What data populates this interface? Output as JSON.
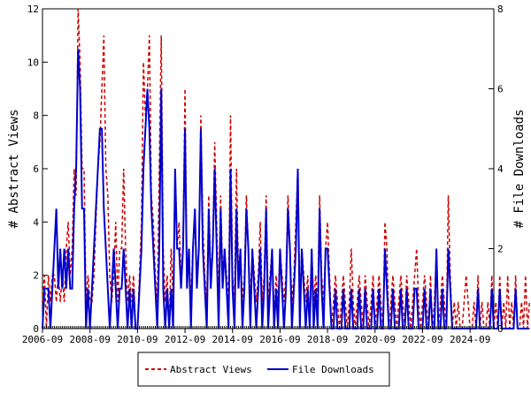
{
  "chart_data": {
    "type": "line",
    "title": "",
    "xlabel": "",
    "ylabel": "# Abstract Views",
    "y2label": "# File Downloads",
    "x_range": [
      "2006-09",
      "2025-09"
    ],
    "x_tick_labels": [
      "2006-09",
      "2008-09",
      "2010-09",
      "2012-09",
      "2014-09",
      "2016-09",
      "2018-09",
      "2020-09",
      "2022-09",
      "2024-09"
    ],
    "ylim": [
      0,
      12
    ],
    "y_ticks": [
      0,
      2,
      4,
      6,
      8,
      10,
      12
    ],
    "y2lim": [
      0,
      8
    ],
    "y2_ticks": [
      0,
      2,
      4,
      6,
      8
    ],
    "grid": false,
    "legend_position": "bottom",
    "series": [
      {
        "name": "Abstract Views",
        "axis": "left",
        "color": "#cc0000",
        "style": "dashed",
        "values": [
          1,
          2,
          0,
          2,
          1,
          2,
          2,
          1,
          2,
          1,
          2,
          1,
          3,
          4,
          2,
          3,
          6,
          5,
          12,
          10,
          6,
          6,
          1,
          2,
          1,
          1,
          2,
          4,
          6,
          7,
          9,
          11,
          6,
          5,
          2,
          1,
          2,
          4,
          1,
          3,
          3,
          6,
          3,
          1,
          2,
          1,
          2,
          0,
          0,
          2,
          4,
          10,
          8,
          9,
          11,
          5,
          4,
          2,
          1,
          6,
          11,
          3,
          1,
          2,
          0,
          3,
          1,
          6,
          3,
          4,
          2,
          3,
          9,
          2,
          3,
          1,
          3,
          4,
          2,
          3,
          8,
          4,
          2,
          1,
          5,
          2,
          3,
          7,
          4,
          1,
          5,
          2,
          3,
          2,
          1,
          8,
          2,
          1,
          6,
          2,
          3,
          1,
          2,
          5,
          3,
          1,
          3,
          2,
          1,
          2,
          4,
          1,
          2,
          5,
          1,
          2,
          3,
          0,
          2,
          1,
          3,
          2,
          1,
          2,
          5,
          3,
          1,
          2,
          4,
          6,
          1,
          3,
          2,
          1,
          2,
          0,
          3,
          1,
          2,
          1,
          5,
          2,
          1,
          3,
          4,
          2,
          0,
          1,
          2,
          1,
          0,
          1,
          2,
          1,
          0,
          1,
          3,
          1,
          0,
          1,
          2,
          1,
          0,
          2,
          1,
          0,
          1,
          2,
          0,
          1,
          2,
          1,
          0,
          4,
          3,
          0,
          1,
          2,
          1,
          0,
          1,
          2,
          1,
          0,
          2,
          1,
          0,
          1,
          2,
          3,
          1,
          0,
          1,
          2,
          1,
          0,
          2,
          0,
          1,
          3,
          0,
          1,
          2,
          1,
          0,
          5,
          2,
          0,
          1,
          0,
          1,
          0,
          0,
          1,
          2,
          1,
          0,
          0,
          1,
          0,
          2,
          0,
          1,
          0,
          0,
          1,
          0,
          2,
          0,
          1,
          0,
          2,
          0,
          1,
          0,
          2,
          0,
          1,
          0,
          2,
          0,
          0,
          1,
          0,
          2,
          0,
          1
        ]
      },
      {
        "name": "File Downloads",
        "axis": "right",
        "color": "#0000cc",
        "style": "solid",
        "values": [
          0,
          1,
          1,
          1,
          0,
          1,
          2,
          3,
          1,
          2,
          1,
          2,
          1,
          2,
          1,
          1,
          3,
          4,
          7,
          6,
          3,
          3,
          0,
          1,
          0,
          1,
          2,
          3,
          4,
          5,
          5,
          3,
          2,
          1,
          0,
          1,
          2,
          1,
          0,
          1,
          1,
          2,
          1,
          0,
          1,
          0,
          1,
          0,
          0,
          1,
          2,
          4,
          5,
          6,
          5,
          3,
          2,
          1,
          0,
          2,
          6,
          1,
          0,
          1,
          0,
          1,
          0,
          4,
          2,
          2,
          1,
          2,
          5,
          1,
          2,
          0,
          2,
          3,
          1,
          2,
          5,
          2,
          1,
          0,
          3,
          1,
          2,
          4,
          2,
          0,
          3,
          1,
          2,
          1,
          0,
          4,
          1,
          0,
          3,
          1,
          2,
          0,
          1,
          3,
          2,
          0,
          2,
          1,
          0,
          1,
          2,
          0,
          1,
          3,
          0,
          1,
          2,
          0,
          1,
          0,
          2,
          1,
          0,
          1,
          3,
          2,
          0,
          1,
          2,
          4,
          0,
          2,
          1,
          0,
          1,
          0,
          2,
          0,
          1,
          0,
          3,
          1,
          0,
          2,
          2,
          1,
          0,
          0,
          1,
          0,
          0,
          0,
          1,
          0,
          0,
          0,
          1,
          0,
          0,
          0,
          1,
          0,
          0,
          1,
          0,
          0,
          0,
          1,
          0,
          0,
          1,
          0,
          0,
          2,
          1,
          0,
          0,
          1,
          0,
          0,
          0,
          1,
          0,
          0,
          1,
          0,
          0,
          0,
          1,
          1,
          0,
          0,
          0,
          1,
          0,
          0,
          1,
          0,
          0,
          2,
          0,
          0,
          1,
          0,
          0,
          2,
          1,
          0,
          0,
          0,
          0,
          0,
          0,
          0,
          0,
          0,
          0,
          0,
          0,
          0,
          1,
          0,
          0,
          0,
          0,
          0,
          0,
          1,
          0,
          0,
          0,
          1,
          0,
          0,
          0,
          0,
          0,
          0,
          0,
          1,
          0,
          0,
          0,
          0,
          0,
          0,
          0
        ]
      }
    ]
  }
}
